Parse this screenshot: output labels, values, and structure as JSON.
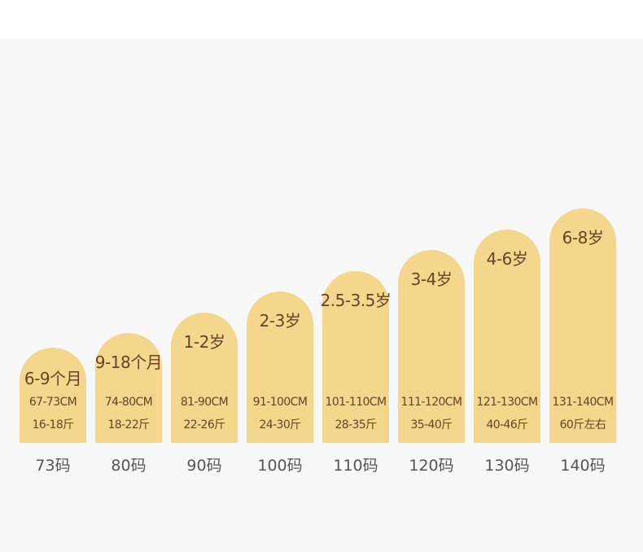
{
  "chart_data": {
    "type": "bar",
    "title": "",
    "xlabel": "",
    "ylabel": "",
    "categories": [
      "73码",
      "80码",
      "90码",
      "100码",
      "110码",
      "120码",
      "130码",
      "140码"
    ],
    "age_labels": [
      "6-9个月",
      "9-18个月",
      "1-2岁",
      "2-3岁",
      "2.5-3.5岁",
      "3-4岁",
      "4-6岁",
      "6-8岁"
    ],
    "height_ranges": [
      "67-73CM",
      "74-80CM",
      "81-90CM",
      "91-100CM",
      "101-110CM",
      "111-120CM",
      "121-130CM",
      "131-140CM"
    ],
    "weight_ranges": [
      "16-18斤",
      "18-22斤",
      "22-26斤",
      "24-30斤",
      "28-35斤",
      "35-40斤",
      "40-46斤",
      "60斤左右"
    ],
    "values": [
      73,
      80,
      90,
      100,
      110,
      120,
      130,
      140
    ],
    "ylim": [
      0,
      140
    ],
    "grid": false,
    "bar_color": "#f4d68d",
    "label_color": "#6a4323",
    "category_color": "#555555"
  }
}
